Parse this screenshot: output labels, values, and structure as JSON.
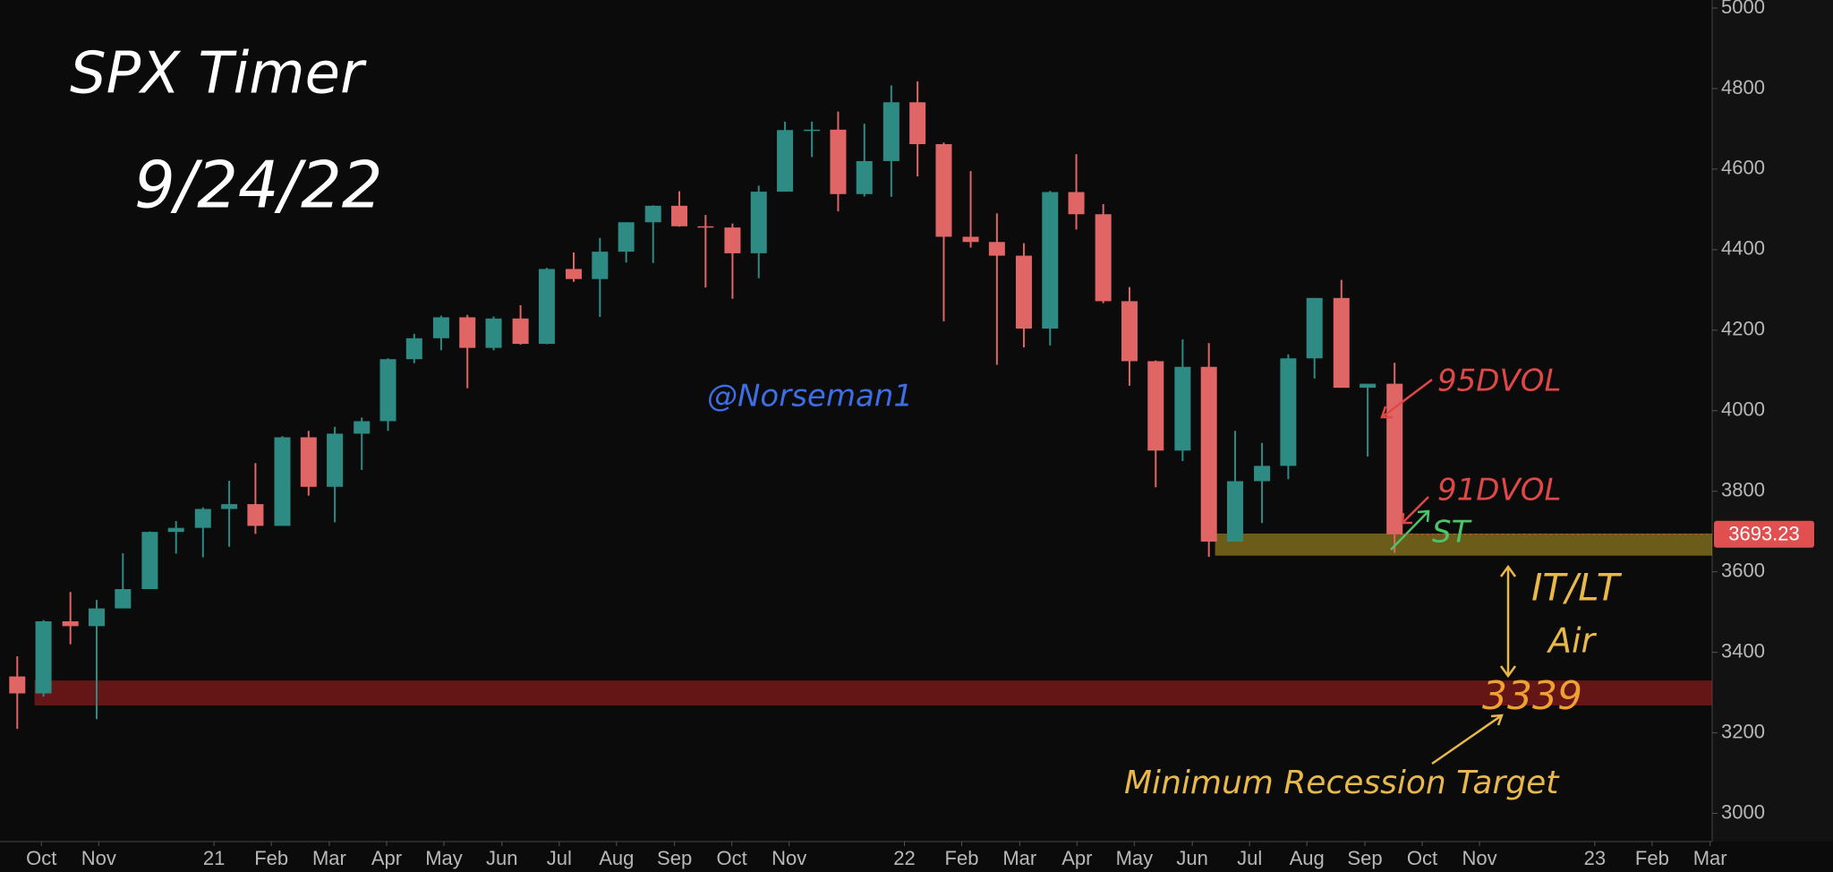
{
  "chart_data": {
    "type": "candlestick",
    "title": "SPX Timer",
    "subtitle": "9/24/22",
    "x": [
      2020.715,
      2020.753,
      2020.792,
      2020.83,
      2020.868,
      2020.907,
      2020.945,
      2020.984,
      2021.022,
      2021.06,
      2021.099,
      2021.137,
      2021.175,
      2021.214,
      2021.252,
      2021.29,
      2021.329,
      2021.367,
      2021.405,
      2021.444,
      2021.482,
      2021.521,
      2021.559,
      2021.597,
      2021.636,
      2021.674,
      2021.712,
      2021.751,
      2021.789,
      2021.827,
      2021.866,
      2021.904,
      2021.942,
      2021.981,
      2022.019,
      2022.057,
      2022.096,
      2022.134,
      2022.173,
      2022.211,
      2022.249,
      2022.288,
      2022.326,
      2022.364,
      2022.403,
      2022.441,
      2022.479,
      2022.518,
      2022.556,
      2022.594,
      2022.633,
      2022.671,
      2022.71
    ],
    "open": [
      3340,
      3298,
      3477,
      3465,
      3509,
      3557,
      3699,
      3709,
      3756,
      3768,
      3714,
      3934,
      3811,
      3943,
      3974,
      4128,
      4180,
      4232,
      4156,
      4229,
      4166,
      4352,
      4327,
      4395,
      4468,
      4509,
      4458,
      4455,
      4391,
      4544,
      4697,
      4698,
      4538,
      4620,
      4766,
      4662,
      4432,
      4419,
      4385,
      4204,
      4543,
      4488,
      4272,
      4123,
      3901,
      4109,
      3675,
      3825,
      3863,
      4130,
      4280,
      4057,
      4067
    ],
    "high": [
      3390,
      3480,
      3550,
      3530,
      3646,
      3700,
      3726,
      3760,
      3826,
      3870,
      3937,
      3950,
      3960,
      3983,
      4130,
      4191,
      4236,
      4238,
      4234,
      4262,
      4355,
      4393,
      4429,
      4468,
      4510,
      4545,
      4486,
      4465,
      4559,
      4718,
      4718,
      4743,
      4713,
      4808,
      4818,
      4666,
      4595,
      4490,
      4416,
      4546,
      4637,
      4513,
      4307,
      4125,
      4177,
      4168,
      3950,
      3920,
      4140,
      4280,
      4325,
      4062,
      4119
    ],
    "low": [
      3210,
      3290,
      3420,
      3234,
      3510,
      3557,
      3645,
      3636,
      3662,
      3694,
      3714,
      3789,
      3723,
      3853,
      3950,
      4118,
      4150,
      4056,
      4150,
      4164,
      4165,
      4320,
      4233,
      4368,
      4367,
      4457,
      4306,
      4278,
      4329,
      4544,
      4630,
      4495,
      4532,
      4531,
      4582,
      4222,
      4405,
      4114,
      4157,
      4162,
      4450,
      4267,
      4062,
      3810,
      3875,
      3637,
      3675,
      3721,
      3830,
      4080,
      4057,
      3886,
      3647
    ],
    "close": [
      3298,
      3477,
      3465,
      3509,
      3557,
      3699,
      3709,
      3756,
      3768,
      3714,
      3934,
      3811,
      3943,
      3974,
      4128,
      4180,
      4232,
      4156,
      4229,
      4166,
      4352,
      4327,
      4395,
      4468,
      4509,
      4458,
      4455,
      4391,
      4544,
      4697,
      4698,
      4538,
      4620,
      4766,
      4662,
      4432,
      4419,
      4385,
      4204,
      4543,
      4488,
      4272,
      4123,
      3901,
      4109,
      3675,
      3825,
      3863,
      4130,
      4280,
      4057,
      4067,
      3693
    ],
    "up_color": "#2e8b84",
    "down_color": "#e06666",
    "last_price": 3693.23,
    "last_price_color": "#e05050",
    "xlim": [
      2020.69,
      2023.17
    ],
    "ylim": [
      2930,
      5020
    ],
    "yticks": [
      3000,
      3200,
      3400,
      3600,
      3800,
      4000,
      4200,
      4400,
      4600,
      4800,
      5000
    ],
    "xticks": [
      {
        "value": 2020.75,
        "label": "Oct"
      },
      {
        "value": 2020.833,
        "label": "Nov"
      },
      {
        "value": 2021.0,
        "label": "21"
      },
      {
        "value": 2021.083,
        "label": "Feb"
      },
      {
        "value": 2021.167,
        "label": "Mar"
      },
      {
        "value": 2021.25,
        "label": "Apr"
      },
      {
        "value": 2021.333,
        "label": "May"
      },
      {
        "value": 2021.417,
        "label": "Jun"
      },
      {
        "value": 2021.5,
        "label": "Jul"
      },
      {
        "value": 2021.583,
        "label": "Aug"
      },
      {
        "value": 2021.667,
        "label": "Sep"
      },
      {
        "value": 2021.75,
        "label": "Oct"
      },
      {
        "value": 2021.833,
        "label": "Nov"
      },
      {
        "value": 2022.0,
        "label": "22"
      },
      {
        "value": 2022.083,
        "label": "Feb"
      },
      {
        "value": 2022.167,
        "label": "Mar"
      },
      {
        "value": 2022.25,
        "label": "Apr"
      },
      {
        "value": 2022.333,
        "label": "May"
      },
      {
        "value": 2022.417,
        "label": "Jun"
      },
      {
        "value": 2022.5,
        "label": "Jul"
      },
      {
        "value": 2022.583,
        "label": "Aug"
      },
      {
        "value": 2022.667,
        "label": "Sep"
      },
      {
        "value": 2022.75,
        "label": "Oct"
      },
      {
        "value": 2022.833,
        "label": "Nov"
      },
      {
        "value": 2023.0,
        "label": "23"
      },
      {
        "value": 2023.083,
        "label": "Feb"
      },
      {
        "value": 2023.167,
        "label": "Mar"
      }
    ],
    "bands": [
      {
        "range": [
          3640,
          3695
        ],
        "start": 2022.45,
        "color": "rgba(190,160,40,0.55)"
      },
      {
        "range": [
          3268,
          3330
        ],
        "start": 2020.74,
        "color": "rgba(160,30,30,0.6)"
      }
    ],
    "annotations": [
      {
        "text": "@Norseman1",
        "color": "#3d6ee6"
      },
      {
        "text": "95DVOL",
        "color": "#e04848"
      },
      {
        "text": "91DVOL",
        "color": "#e04848"
      },
      {
        "text": "ST",
        "color": "#4cc46a"
      },
      {
        "text": "IT/LT",
        "color": "#e8b84a"
      },
      {
        "text": "Air",
        "color": "#e8b84a"
      },
      {
        "text": "3339",
        "color": "#f0a030"
      },
      {
        "text": "Minimum Recession Target",
        "color": "#e8b84a"
      }
    ]
  }
}
